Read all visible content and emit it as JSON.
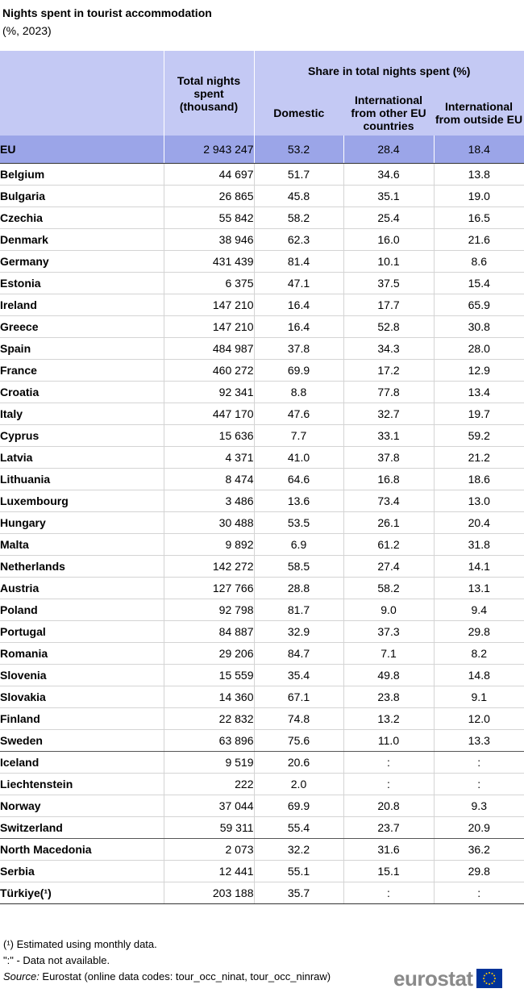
{
  "title": "Nights spent in tourist accommodation",
  "subtitle": "(%, 2023)",
  "table": {
    "headers": {
      "col_total": "Total nights spent (thousand)",
      "share_group": "Share in total nights spent (%)",
      "domestic": "Domestic",
      "intl_eu": "International from other EU countries",
      "intl_non_eu": "International from outside EU"
    },
    "eu_row": {
      "name": "EU",
      "total": "2 943 247",
      "domestic": "53.2",
      "intl_eu": "28.4",
      "intl_non_eu": "18.4"
    },
    "rows": [
      {
        "name": "Belgium",
        "total": "44 697",
        "domestic": "51.7",
        "intl_eu": "34.6",
        "intl_non_eu": "13.8"
      },
      {
        "name": "Bulgaria",
        "total": "26 865",
        "domestic": "45.8",
        "intl_eu": "35.1",
        "intl_non_eu": "19.0"
      },
      {
        "name": "Czechia",
        "total": "55 842",
        "domestic": "58.2",
        "intl_eu": "25.4",
        "intl_non_eu": "16.5"
      },
      {
        "name": "Denmark",
        "total": "38 946",
        "domestic": "62.3",
        "intl_eu": "16.0",
        "intl_non_eu": "21.6"
      },
      {
        "name": "Germany",
        "total": "431 439",
        "domestic": "81.4",
        "intl_eu": "10.1",
        "intl_non_eu": "8.6"
      },
      {
        "name": "Estonia",
        "total": "6 375",
        "domestic": "47.1",
        "intl_eu": "37.5",
        "intl_non_eu": "15.4"
      },
      {
        "name": "Ireland",
        "total": "147 210",
        "domestic": "16.4",
        "intl_eu": "17.7",
        "intl_non_eu": "65.9"
      },
      {
        "name": "Greece",
        "total": "147 210",
        "domestic": "16.4",
        "intl_eu": "52.8",
        "intl_non_eu": "30.8"
      },
      {
        "name": "Spain",
        "total": "484 987",
        "domestic": "37.8",
        "intl_eu": "34.3",
        "intl_non_eu": "28.0"
      },
      {
        "name": "France",
        "total": "460 272",
        "domestic": "69.9",
        "intl_eu": "17.2",
        "intl_non_eu": "12.9"
      },
      {
        "name": "Croatia",
        "total": "92 341",
        "domestic": "8.8",
        "intl_eu": "77.8",
        "intl_non_eu": "13.4"
      },
      {
        "name": "Italy",
        "total": "447 170",
        "domestic": "47.6",
        "intl_eu": "32.7",
        "intl_non_eu": "19.7"
      },
      {
        "name": "Cyprus",
        "total": "15 636",
        "domestic": "7.7",
        "intl_eu": "33.1",
        "intl_non_eu": "59.2"
      },
      {
        "name": "Latvia",
        "total": "4 371",
        "domestic": "41.0",
        "intl_eu": "37.8",
        "intl_non_eu": "21.2"
      },
      {
        "name": "Lithuania",
        "total": "8 474",
        "domestic": "64.6",
        "intl_eu": "16.8",
        "intl_non_eu": "18.6"
      },
      {
        "name": "Luxembourg",
        "total": "3 486",
        "domestic": "13.6",
        "intl_eu": "73.4",
        "intl_non_eu": "13.0"
      },
      {
        "name": "Hungary",
        "total": "30 488",
        "domestic": "53.5",
        "intl_eu": "26.1",
        "intl_non_eu": "20.4"
      },
      {
        "name": "Malta",
        "total": "9 892",
        "domestic": "6.9",
        "intl_eu": "61.2",
        "intl_non_eu": "31.8"
      },
      {
        "name": "Netherlands",
        "total": "142 272",
        "domestic": "58.5",
        "intl_eu": "27.4",
        "intl_non_eu": "14.1"
      },
      {
        "name": "Austria",
        "total": "127 766",
        "domestic": "28.8",
        "intl_eu": "58.2",
        "intl_non_eu": "13.1"
      },
      {
        "name": "Poland",
        "total": "92 798",
        "domestic": "81.7",
        "intl_eu": "9.0",
        "intl_non_eu": "9.4"
      },
      {
        "name": "Portugal",
        "total": "84 887",
        "domestic": "32.9",
        "intl_eu": "37.3",
        "intl_non_eu": "29.8"
      },
      {
        "name": "Romania",
        "total": "29 206",
        "domestic": "84.7",
        "intl_eu": "7.1",
        "intl_non_eu": "8.2"
      },
      {
        "name": "Slovenia",
        "total": "15 559",
        "domestic": "35.4",
        "intl_eu": "49.8",
        "intl_non_eu": "14.8"
      },
      {
        "name": "Slovakia",
        "total": "14 360",
        "domestic": "67.1",
        "intl_eu": "23.8",
        "intl_non_eu": "9.1"
      },
      {
        "name": "Finland",
        "total": "22 832",
        "domestic": "74.8",
        "intl_eu": "13.2",
        "intl_non_eu": "12.0"
      },
      {
        "name": "Sweden",
        "total": "63 896",
        "domestic": "75.6",
        "intl_eu": "11.0",
        "intl_non_eu": "13.3"
      },
      {
        "name": "Iceland",
        "total": "9 519",
        "domestic": "20.6",
        "intl_eu": ":",
        "intl_non_eu": ":"
      },
      {
        "name": "Liechtenstein",
        "total": "222",
        "domestic": "2.0",
        "intl_eu": ":",
        "intl_non_eu": ":"
      },
      {
        "name": "Norway",
        "total": "37 044",
        "domestic": "69.9",
        "intl_eu": "20.8",
        "intl_non_eu": "9.3"
      },
      {
        "name": "Switzerland",
        "total": "59 311",
        "domestic": "55.4",
        "intl_eu": "23.7",
        "intl_non_eu": "20.9"
      },
      {
        "name": "North Macedonia",
        "total": "2 073",
        "domestic": "32.2",
        "intl_eu": "31.6",
        "intl_non_eu": "36.2"
      },
      {
        "name": "Serbia",
        "total": "12 441",
        "domestic": "55.1",
        "intl_eu": "15.1",
        "intl_non_eu": "29.8"
      },
      {
        "name": "Türkiye(¹)",
        "total": "203 188",
        "domestic": "35.7",
        "intl_eu": ":",
        "intl_non_eu": ":"
      }
    ]
  },
  "notes": {
    "estimated": "(¹) Estimated using monthly data.",
    "not_available": "\":\" - Data not available.",
    "source_label": "Source:",
    "source_text": " Eurostat (online data codes: tour_occ_ninat, tour_occ_ninraw)"
  },
  "logo": {
    "text": "eurostat",
    "flag_color": "#003399",
    "star_color": "#ffcc00"
  }
}
